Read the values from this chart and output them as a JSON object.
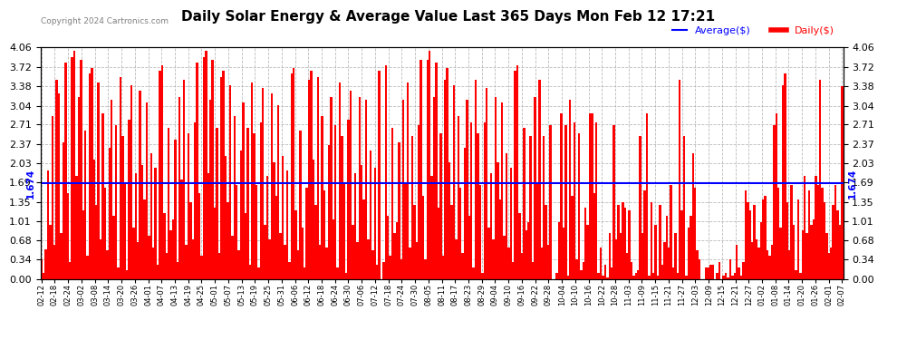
{
  "title": "Daily Solar Energy & Average Value Last 365 Days Mon Feb 12 17:21",
  "copyright": "Copyright 2024 Cartronics.com",
  "average_label": "Average($)",
  "daily_label": "Daily($)",
  "average_value": 1.674,
  "average_color": "blue",
  "bar_color": "red",
  "background_color": "white",
  "grid_color": "#aaaaaa",
  "ylim": [
    0.0,
    4.06
  ],
  "yticks": [
    0.0,
    0.34,
    0.68,
    1.01,
    1.35,
    1.69,
    2.03,
    2.37,
    2.71,
    3.04,
    3.38,
    3.72,
    4.06
  ],
  "xtick_labels": [
    "02-12",
    "02-18",
    "02-24",
    "03-02",
    "03-08",
    "03-14",
    "03-20",
    "03-26",
    "04-01",
    "04-07",
    "04-13",
    "04-19",
    "04-25",
    "05-01",
    "05-07",
    "05-13",
    "05-19",
    "05-25",
    "05-31",
    "06-06",
    "06-12",
    "06-18",
    "06-24",
    "06-30",
    "07-06",
    "07-12",
    "07-18",
    "07-24",
    "07-30",
    "08-05",
    "08-11",
    "08-17",
    "08-23",
    "08-29",
    "09-04",
    "09-10",
    "09-16",
    "09-22",
    "09-28",
    "10-04",
    "10-10",
    "10-16",
    "10-22",
    "10-28",
    "11-03",
    "11-09",
    "11-15",
    "11-21",
    "11-27",
    "12-03",
    "12-09",
    "12-15",
    "12-21",
    "12-27",
    "01-02",
    "01-08",
    "01-14",
    "01-20",
    "01-26",
    "02-01",
    "02-07"
  ],
  "daily_values": [
    0.35,
    0.1,
    0.52,
    1.9,
    0.95,
    2.85,
    0.6,
    3.5,
    3.25,
    0.8,
    2.4,
    3.8,
    1.5,
    0.3,
    3.9,
    4.0,
    1.8,
    3.2,
    3.85,
    1.2,
    2.6,
    0.4,
    3.6,
    3.7,
    2.1,
    1.3,
    3.45,
    0.7,
    2.9,
    1.6,
    0.5,
    2.3,
    3.15,
    1.1,
    2.7,
    0.2,
    3.55,
    2.5,
    1.7,
    0.15,
    2.8,
    3.4,
    0.9,
    1.85,
    0.65,
    3.3,
    2.0,
    1.4,
    3.1,
    0.75,
    2.2,
    0.55,
    1.95,
    0.25,
    3.65,
    3.75,
    1.15,
    0.45,
    2.65,
    0.85,
    1.05,
    2.45,
    0.3,
    3.2,
    1.75,
    3.5,
    0.6,
    2.55,
    1.35,
    0.7,
    2.75,
    3.8,
    1.5,
    0.4,
    3.9,
    4.0,
    1.85,
    3.15,
    3.85,
    1.25,
    2.65,
    0.45,
    3.55,
    3.65,
    2.15,
    1.35,
    3.4,
    0.75,
    2.85,
    1.65,
    0.5,
    2.25,
    3.1,
    1.15,
    2.65,
    0.25,
    3.45,
    2.55,
    1.65,
    0.2,
    2.75,
    3.35,
    0.95,
    1.8,
    0.7,
    3.25,
    2.05,
    1.45,
    3.05,
    0.8,
    2.15,
    0.6,
    1.9,
    0.3,
    3.6,
    3.7,
    1.2,
    0.5,
    2.6,
    0.9,
    0.2,
    1.6,
    3.5,
    3.65,
    2.1,
    1.3,
    3.55,
    0.6,
    2.85,
    1.55,
    0.55,
    2.35,
    3.2,
    1.05,
    2.7,
    0.2,
    3.45,
    2.5,
    1.7,
    0.1,
    2.8,
    3.3,
    0.95,
    1.85,
    0.65,
    3.2,
    2.0,
    1.4,
    3.15,
    0.7,
    2.25,
    0.5,
    1.95,
    0.25,
    3.65,
    0.0,
    0.3,
    3.75,
    1.1,
    0.4,
    2.65,
    0.8,
    1.0,
    2.4,
    0.35,
    3.15,
    1.7,
    3.45,
    0.55,
    2.5,
    1.3,
    0.65,
    2.7,
    3.85,
    1.45,
    0.35,
    3.85,
    4.0,
    1.8,
    3.2,
    3.8,
    1.25,
    2.55,
    0.4,
    3.5,
    3.7,
    2.05,
    1.3,
    3.4,
    0.7,
    2.85,
    1.6,
    0.45,
    2.3,
    3.15,
    1.1,
    2.75,
    0.2,
    3.5,
    2.55,
    1.65,
    0.1,
    2.75,
    3.35,
    0.9,
    1.85,
    0.7,
    3.2,
    2.05,
    1.4,
    3.1,
    0.75,
    2.2,
    0.55,
    1.95,
    0.3,
    3.65,
    3.75,
    1.15,
    0.45,
    2.65,
    0.85,
    1.0,
    2.5,
    0.3,
    3.2,
    1.7,
    3.5,
    0.55,
    2.5,
    1.3,
    0.6,
    2.7,
    0.0,
    0.0,
    0.1,
    1.0,
    2.9,
    0.9,
    2.7,
    0.05,
    3.15,
    1.45,
    2.75,
    0.35,
    2.55,
    0.15,
    0.3,
    1.25,
    0.95,
    2.9,
    2.9,
    1.5,
    2.75,
    0.1,
    0.55,
    0.05,
    0.25,
    0.02,
    0.8,
    0.2,
    2.7,
    0.7,
    1.3,
    0.8,
    1.35,
    1.25,
    0.45,
    1.2,
    0.3,
    0.05,
    0.1,
    0.15,
    2.5,
    0.8,
    1.55,
    2.9,
    0.05,
    1.35,
    0.1,
    0.95,
    0.05,
    1.3,
    0.25,
    0.65,
    1.1,
    0.55,
    1.65,
    0.2,
    0.8,
    0.1,
    3.5,
    1.2,
    2.5,
    0.05,
    0.9,
    1.1,
    2.2,
    1.6,
    0.5,
    0.35,
    0.0,
    0.0,
    0.2,
    0.2,
    0.25,
    0.25,
    0.0,
    0.1,
    0.3,
    0.0,
    0.05,
    0.1,
    0.02,
    0.35,
    0.05,
    0.1,
    0.6,
    0.2,
    0.05,
    0.3,
    1.55,
    1.35,
    1.2,
    0.65,
    1.3,
    0.7,
    0.55,
    1.0,
    1.4,
    1.45,
    0.5,
    0.4,
    0.6,
    2.7,
    2.9,
    1.6,
    0.9,
    3.4,
    3.6,
    1.35,
    0.5,
    1.65,
    0.95,
    0.15,
    1.4,
    0.1,
    0.85,
    1.8,
    0.8,
    1.55,
    0.95,
    1.05,
    1.8,
    1.65,
    3.5,
    1.6,
    1.35,
    0.8,
    0.45,
    0.55,
    1.3,
    1.65,
    1.2,
    0.95,
    3.38
  ]
}
